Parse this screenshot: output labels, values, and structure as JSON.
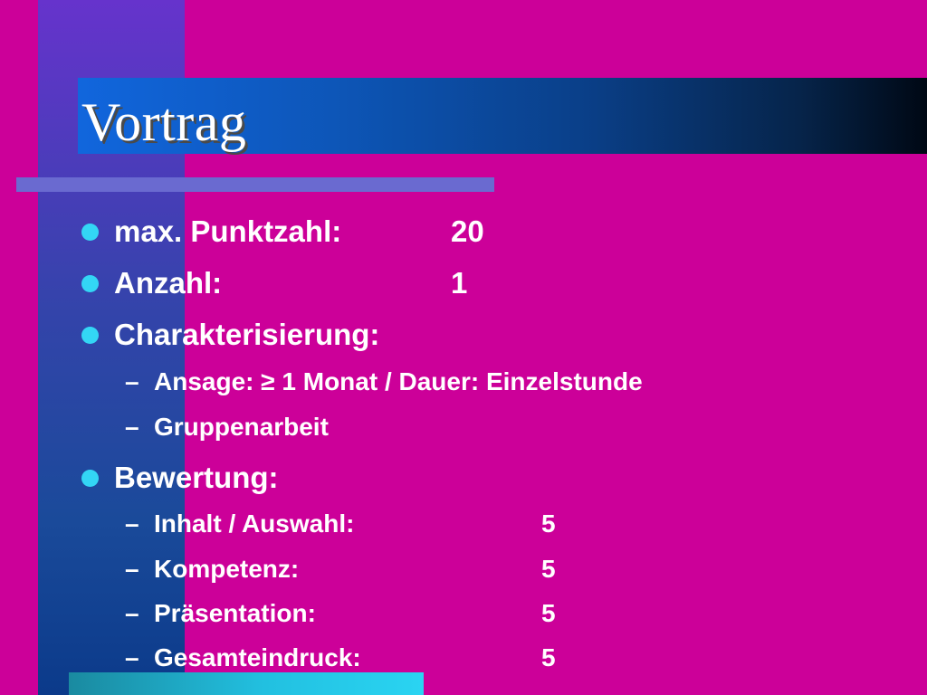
{
  "slide": {
    "title": "Vortrag",
    "items": [
      {
        "label": "max. Punktzahl:",
        "value": "20"
      },
      {
        "label": "Anzahl:",
        "value": "1"
      },
      {
        "label": "Charakterisierung:"
      },
      {
        "label": "Bewertung:"
      }
    ],
    "characterization": [
      {
        "dash": "–",
        "text": "Ansage: ≥ 1 Monat  /  Dauer: Einzelstunde"
      },
      {
        "dash": "–",
        "text": "Gruppenarbeit"
      }
    ],
    "evaluation": [
      {
        "dash": "–",
        "label": "Inhalt / Auswahl:",
        "value": "5"
      },
      {
        "dash": "–",
        "label": "Kompetenz:",
        "value": "5"
      },
      {
        "dash": "–",
        "label": "Präsentation:",
        "value": "5"
      },
      {
        "dash": "–",
        "label": "Gesamteindruck:",
        "value": "5"
      }
    ]
  },
  "colors": {
    "background": "#cc0099",
    "bullet": "#33d6f5",
    "text": "#ffffff"
  }
}
